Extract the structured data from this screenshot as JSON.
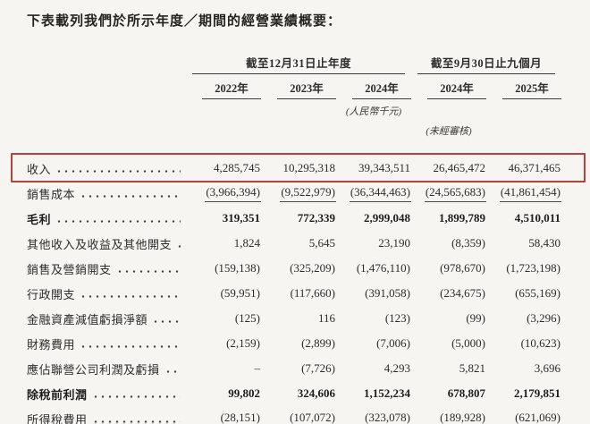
{
  "title": "下表載列我們於所示年度／期間的經營業績概要：",
  "table": {
    "highlight_color": "#b2433d",
    "group_headers": [
      "截至12月31日止年度",
      "截至9月30日止九個月"
    ],
    "columns": [
      "2022年",
      "2023年",
      "2024年",
      "2024年",
      "2025年"
    ],
    "unit_note": "(人民幣千元)",
    "unaudited_note": "(未經審核)",
    "rows": [
      {
        "label": "收入",
        "values": [
          "4,285,745",
          "10,295,318",
          "39,343,511",
          "26,465,472",
          "46,371,465"
        ]
      },
      {
        "label": "銷售成本",
        "values": [
          "(3,966,394)",
          "(9,522,979)",
          "(36,344,463)",
          "(24,565,683)",
          "(41,861,454)"
        ]
      },
      {
        "label": "毛利",
        "values": [
          "319,351",
          "772,339",
          "2,999,048",
          "1,899,789",
          "4,510,011"
        ]
      },
      {
        "label": "其他收入及收益及其他開支",
        "values": [
          "1,824",
          "5,645",
          "23,190",
          "(8,359)",
          "58,430"
        ]
      },
      {
        "label": "銷售及營銷開支",
        "values": [
          "(159,138)",
          "(325,209)",
          "(1,476,110)",
          "(978,670)",
          "(1,723,198)"
        ]
      },
      {
        "label": "行政開支",
        "values": [
          "(59,951)",
          "(117,660)",
          "(391,058)",
          "(234,675)",
          "(655,169)"
        ]
      },
      {
        "label": "金融資產減值虧損淨額",
        "values": [
          "(125)",
          "116",
          "(123)",
          "(99)",
          "(3,296)"
        ]
      },
      {
        "label": "財務費用",
        "values": [
          "(2,159)",
          "(2,899)",
          "(7,006)",
          "(5,000)",
          "(10,623)"
        ]
      },
      {
        "label": "應佔聯營公司利潤及虧損",
        "values": [
          "–",
          "(7,726)",
          "4,293",
          "5,821",
          "3,696"
        ]
      },
      {
        "label": "除稅前利潤",
        "values": [
          "99,802",
          "324,606",
          "1,152,234",
          "678,807",
          "2,179,851"
        ]
      },
      {
        "label": "所得稅費用",
        "values": [
          "(28,151)",
          "(107,072)",
          "(323,078)",
          "(189,928)",
          "(621,069)"
        ]
      }
    ]
  }
}
